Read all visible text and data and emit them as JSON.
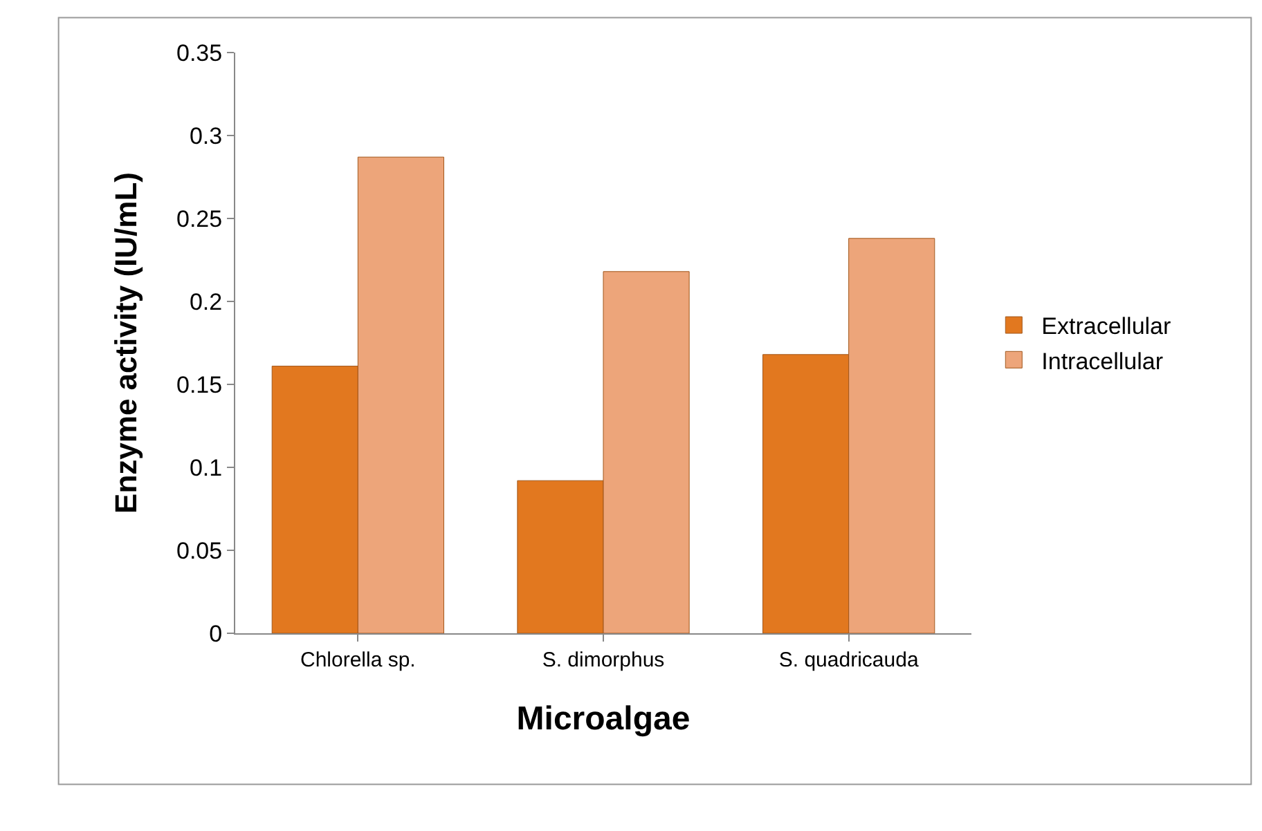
{
  "chart_data": {
    "type": "bar",
    "xlabel": "Microalgae",
    "ylabel": "Enzyme activity (IU/mL)",
    "categories": [
      "Chlorella sp.",
      "S. dimorphus",
      "S. quadricauda"
    ],
    "series": [
      {
        "name": "Extracellular",
        "color": "#e2781f",
        "values": [
          0.161,
          0.092,
          0.168
        ]
      },
      {
        "name": "Intracellular",
        "color": "#eda57a",
        "values": [
          0.287,
          0.218,
          0.238
        ]
      }
    ],
    "ylim": [
      0,
      0.35
    ],
    "yticks": [
      0,
      0.05,
      0.1,
      0.15,
      0.2,
      0.25,
      0.3,
      0.35
    ],
    "grid": false,
    "legend": "right"
  }
}
